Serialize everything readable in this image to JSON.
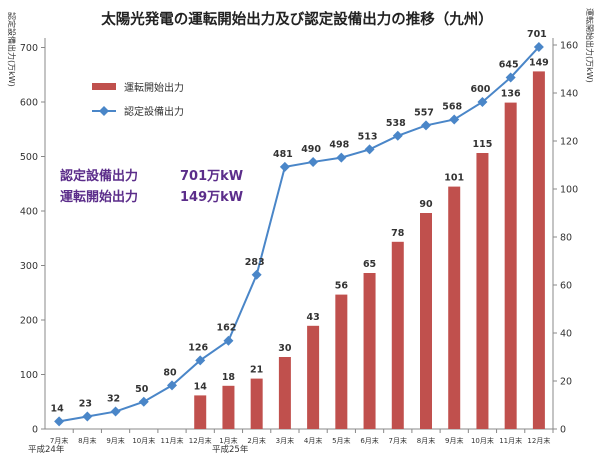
{
  "chart_data": {
    "type": "bar",
    "title": "太陽光発電の運転開始出力及び認定設備出力の推移（九州）",
    "ylabel_left": "認定設備出力(万kW)",
    "ylabel_right": "運転開始出力(万kW)",
    "categories": [
      "7月末",
      "8月末",
      "9月末",
      "10月末",
      "11月末",
      "12月末",
      "1月末",
      "2月末",
      "3月末",
      "4月末",
      "5月末",
      "6月末",
      "7月末",
      "8月末",
      "9月末",
      "10月末",
      "11月末",
      "12月末"
    ],
    "era_labels": [
      "平成24年",
      "平成25年"
    ],
    "y_left_ticks": [
      0,
      100,
      200,
      300,
      400,
      500,
      600,
      700
    ],
    "y_right_ticks": [
      0,
      20,
      40,
      60,
      80,
      100,
      120,
      140,
      160
    ],
    "ylim_left": [
      0,
      750
    ],
    "ylim_right": [
      0,
      170
    ],
    "legend": [
      "運転開始出力",
      "認定設備出力"
    ],
    "legend_placement": "top-left",
    "grid": false,
    "series": [
      {
        "name": "運転開始出力",
        "type": "bar",
        "axis": "right",
        "color": "#c0504d",
        "values": [
          null,
          null,
          null,
          null,
          null,
          14,
          18,
          21,
          30,
          43,
          56,
          65,
          78,
          90,
          101,
          115,
          136,
          149
        ],
        "labels": [
          "",
          "",
          "",
          "",
          "",
          "14",
          "18",
          "21",
          "30",
          "43",
          "56",
          "65",
          "78",
          "90",
          "101",
          "115",
          "136",
          "149"
        ]
      },
      {
        "name": "認定設備出力",
        "type": "line",
        "axis": "left",
        "color": "#4a86c8",
        "values": [
          14,
          23,
          32,
          50,
          80,
          126,
          162,
          283,
          481,
          490,
          498,
          513,
          538,
          557,
          568,
          600,
          645,
          701
        ],
        "labels": [
          "14",
          "23",
          "32",
          "50",
          "80",
          "126",
          "162",
          "283",
          "481",
          "490",
          "498",
          "513",
          "538",
          "557",
          "568",
          "600",
          "645",
          "701"
        ]
      }
    ],
    "annotations": [
      {
        "label": "認定設備出力",
        "value": "701万kW"
      },
      {
        "label": "運転開始出力",
        "value": "149万kW"
      }
    ]
  }
}
